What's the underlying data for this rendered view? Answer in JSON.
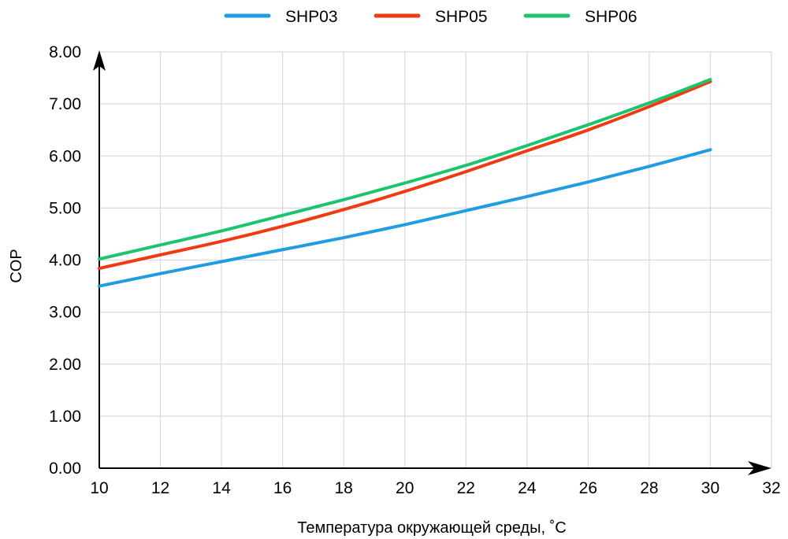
{
  "chart_data": {
    "type": "line",
    "xlabel": "Температура окружающей среды, ˚С",
    "ylabel": "COP",
    "xlim": [
      10,
      32
    ],
    "ylim": [
      0,
      8
    ],
    "x_ticks": [
      10,
      12,
      14,
      16,
      18,
      20,
      22,
      24,
      26,
      28,
      30,
      32
    ],
    "y_ticks": [
      "0.00",
      "1.00",
      "2.00",
      "3.00",
      "4.00",
      "5.00",
      "6.00",
      "7.00",
      "8.00"
    ],
    "grid": true,
    "legend_position": "top",
    "x": [
      10,
      12,
      14,
      16,
      18,
      20,
      22,
      24,
      26,
      28,
      30
    ],
    "series": [
      {
        "name": "SHP03",
        "color": "#1f9de0",
        "values": [
          3.5,
          3.74,
          3.97,
          4.2,
          4.43,
          4.68,
          4.95,
          5.22,
          5.5,
          5.8,
          6.12
        ]
      },
      {
        "name": "SHP05",
        "color": "#ef3a12",
        "values": [
          3.84,
          4.1,
          4.36,
          4.65,
          4.97,
          5.32,
          5.7,
          6.1,
          6.5,
          6.95,
          7.43
        ]
      },
      {
        "name": "SHP06",
        "color": "#1dc46e",
        "values": [
          4.02,
          4.29,
          4.56,
          4.86,
          5.16,
          5.48,
          5.82,
          6.2,
          6.6,
          7.02,
          7.47
        ]
      }
    ]
  }
}
